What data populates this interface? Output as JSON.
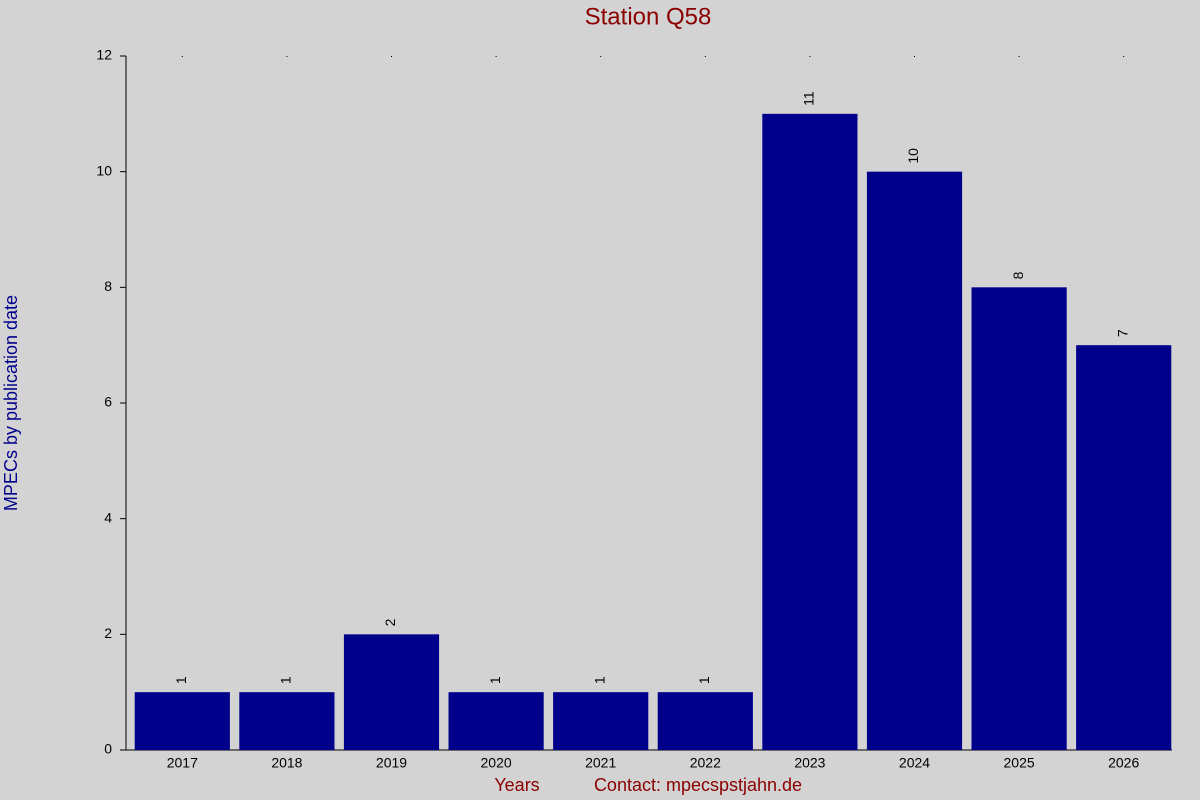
{
  "chart_data": {
    "type": "bar",
    "title": "Station Q58",
    "y_label": "MPECs by publication date",
    "x_label": "Years",
    "annotation": "Contact: mpecspstjahn.de",
    "categories": [
      "2017",
      "2018",
      "2019",
      "2020",
      "2021",
      "2022",
      "2023",
      "2024",
      "2025",
      "2026"
    ],
    "values": [
      1,
      1,
      2,
      1,
      1,
      1,
      11,
      10,
      8,
      7
    ],
    "color": "#00008b",
    "ylim": [
      0,
      12
    ],
    "yticks": [
      0,
      2,
      4,
      6,
      8,
      10,
      12
    ],
    "grid": false
  }
}
